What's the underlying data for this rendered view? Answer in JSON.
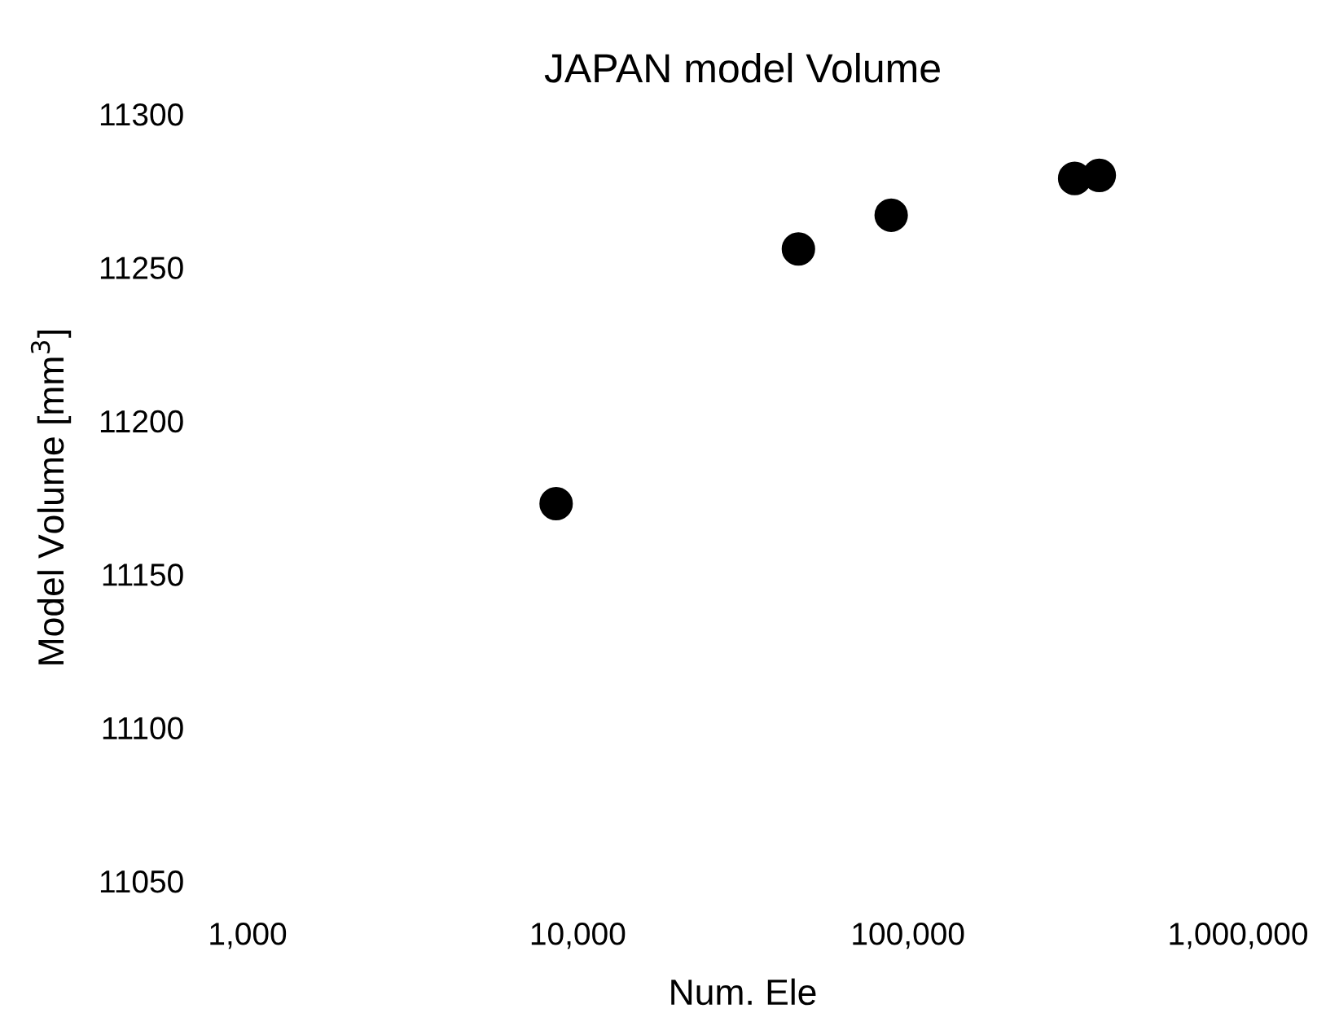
{
  "chart_data": {
    "type": "scatter",
    "title": "JAPAN model Volume",
    "xlabel": "Num. Ele",
    "ylabel": "Model Volume [mm$^{3}$]",
    "log": "x",
    "x": [
      8600,
      46600,
      89000,
      320000,
      380000
    ],
    "values": [
      11173,
      11256,
      11267,
      11279,
      11280
    ],
    "color": "#000000",
    "marker": "circle",
    "xlim": [
      1000,
      1000000
    ],
    "xticks": [
      {
        "value": 1000,
        "label": "1,000"
      },
      {
        "value": 10000,
        "label": "10,000"
      },
      {
        "value": 100000,
        "label": "100,000"
      },
      {
        "value": 1000000,
        "label": "1,000,000"
      }
    ],
    "ylim": [
      11050,
      11300
    ],
    "yticks": [
      11050,
      11100,
      11150,
      11200,
      11250,
      11300
    ]
  }
}
